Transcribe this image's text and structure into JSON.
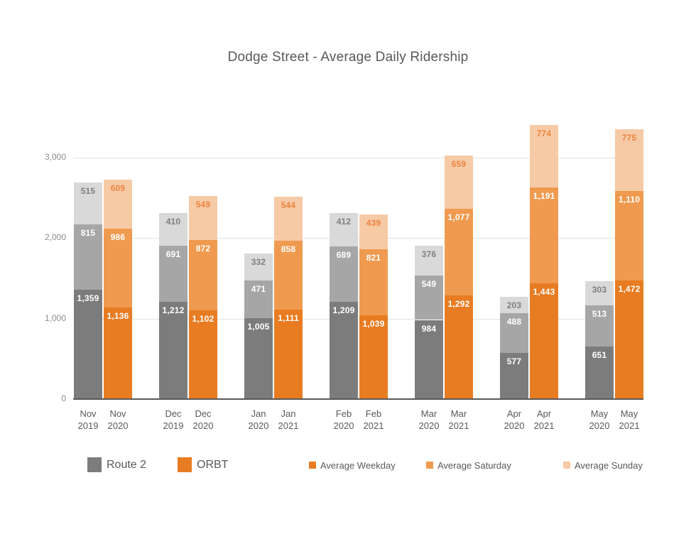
{
  "chart_data": {
    "type": "bar",
    "stacked": true,
    "title": "Dodge Street - Average Daily Ridership",
    "ylim": [
      0,
      3000
    ],
    "grid": true,
    "y_ticks": [
      {
        "value": 0,
        "label": "0"
      },
      {
        "value": 1000,
        "label": "1,000"
      },
      {
        "value": 2000,
        "label": "2,000"
      },
      {
        "value": 3000,
        "label": "3,000"
      }
    ],
    "bar_series": [
      "Route 2",
      "ORBT"
    ],
    "stack_series": [
      "Average Weekday",
      "Average Saturday",
      "Average Sunday"
    ],
    "stack_keys": [
      "weekday",
      "saturday",
      "sunday"
    ],
    "colors": {
      "route2": {
        "weekday": "#7c7c7c",
        "saturday": "#a6a6a6",
        "sunday": "#d9d9d9",
        "sunday_label": "#7f7f7f"
      },
      "orbt": {
        "weekday": "#e87c22",
        "saturday": "#ef9a4f",
        "sunday": "#f7caa6",
        "sunday_label": "#ea8440"
      },
      "white_label": "#ffffff",
      "axis_line": "#595959",
      "gridline": "#e1e1e1",
      "title_text": "#595959",
      "tick_text": "#8c8c8c"
    },
    "groups": [
      {
        "bars": [
          {
            "series_key": "route2",
            "series": "Route 2",
            "month": "Nov",
            "year": "2019",
            "values": {
              "weekday": 1359,
              "saturday": 815,
              "sunday": 515
            }
          },
          {
            "series_key": "orbt",
            "series": "ORBT",
            "month": "Nov",
            "year": "2020",
            "values": {
              "weekday": 1136,
              "saturday": 986,
              "sunday": 609
            }
          }
        ]
      },
      {
        "bars": [
          {
            "series_key": "route2",
            "series": "Route 2",
            "month": "Dec",
            "year": "2019",
            "values": {
              "weekday": 1212,
              "saturday": 691,
              "sunday": 410
            }
          },
          {
            "series_key": "orbt",
            "series": "ORBT",
            "month": "Dec",
            "year": "2020",
            "values": {
              "weekday": 1102,
              "saturday": 872,
              "sunday": 549
            }
          }
        ]
      },
      {
        "bars": [
          {
            "series_key": "route2",
            "series": "Route 2",
            "month": "Jan",
            "year": "2020",
            "values": {
              "weekday": 1005,
              "saturday": 471,
              "sunday": 332
            }
          },
          {
            "series_key": "orbt",
            "series": "ORBT",
            "month": "Jan",
            "year": "2021",
            "values": {
              "weekday": 1111,
              "saturday": 858,
              "sunday": 544
            }
          }
        ]
      },
      {
        "bars": [
          {
            "series_key": "route2",
            "series": "Route 2",
            "month": "Feb",
            "year": "2020",
            "values": {
              "weekday": 1209,
              "saturday": 689,
              "sunday": 412
            }
          },
          {
            "series_key": "orbt",
            "series": "ORBT",
            "month": "Feb",
            "year": "2021",
            "values": {
              "weekday": 1039,
              "saturday": 821,
              "sunday": 439
            }
          }
        ]
      },
      {
        "bars": [
          {
            "series_key": "route2",
            "series": "Route 2",
            "month": "Mar",
            "year": "2020",
            "values": {
              "weekday": 984,
              "saturday": 549,
              "sunday": 376
            }
          },
          {
            "series_key": "orbt",
            "series": "ORBT",
            "month": "Mar",
            "year": "2021",
            "values": {
              "weekday": 1292,
              "saturday": 1077,
              "sunday": 659
            }
          }
        ]
      },
      {
        "bars": [
          {
            "series_key": "route2",
            "series": "Route 2",
            "month": "Apr",
            "year": "2020",
            "values": {
              "weekday": 577,
              "saturday": 488,
              "sunday": 203
            }
          },
          {
            "series_key": "orbt",
            "series": "ORBT",
            "month": "Apr",
            "year": "2021",
            "values": {
              "weekday": 1443,
              "saturday": 1191,
              "sunday": 774
            }
          }
        ]
      },
      {
        "bars": [
          {
            "series_key": "route2",
            "series": "Route 2",
            "month": "May",
            "year": "2020",
            "values": {
              "weekday": 651,
              "saturday": 513,
              "sunday": 303
            }
          },
          {
            "series_key": "orbt",
            "series": "ORBT",
            "month": "May",
            "year": "2021",
            "values": {
              "weekday": 1472,
              "saturday": 1110,
              "sunday": 775
            }
          }
        ]
      }
    ],
    "legend": {
      "position": "bottom",
      "items": [
        {
          "label": "Route 2",
          "color": "#7c7c7c",
          "size": "large"
        },
        {
          "label": "ORBT",
          "color": "#e87c22",
          "size": "large"
        },
        {
          "label": "Average Weekday",
          "color": "#e87c22",
          "size": "small"
        },
        {
          "label": "Average Saturday",
          "color": "#ef9a4f",
          "size": "small"
        },
        {
          "label": "Average Sunday",
          "color": "#f7caa6",
          "size": "small"
        }
      ]
    }
  }
}
